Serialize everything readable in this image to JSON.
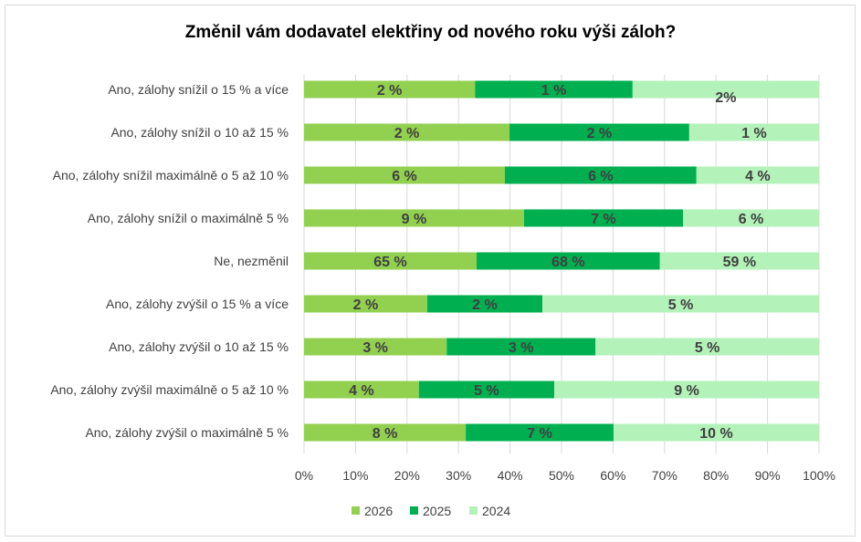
{
  "chart_data": {
    "type": "bar",
    "orientation": "horizontal",
    "stacked": "100%",
    "title": "Změnil vám dodavatel elektřiny od nového roku výši záloh?",
    "categories": [
      "Ano, zálohy snížil o 15 % a více",
      "Ano, zálohy snížil o 10 až 15 %",
      "Ano, zálohy snížil maximálně o 5 až 10 %",
      "Ano, zálohy snížil o maximálně 5 %",
      "Ne, nezměnil",
      "Ano, zálohy zvýšil o 15 % a více",
      "Ano, zálohy zvýšil o 10 až 15 %",
      "Ano, zálohy zvýšil maximálně o 5 až 10 %",
      "Ano, zálohy zvýšil o maximálně 5 %"
    ],
    "series": [
      {
        "name": "2026",
        "color": "#92d050",
        "labels": [
          "2 %",
          "2 %",
          "6 %",
          "9 %",
          "65 %",
          "2 %",
          "3 %",
          "4 %",
          "8 %"
        ],
        "shares": [
          33.2,
          39.9,
          39.0,
          42.7,
          33.5,
          23.9,
          27.7,
          22.3,
          31.4
        ]
      },
      {
        "name": "2025",
        "color": "#00b050",
        "labels": [
          "1 %",
          "2 %",
          "6 %",
          "7 %",
          "68 %",
          "2 %",
          "3 %",
          "5 %",
          "7 %"
        ],
        "shares": [
          30.6,
          34.9,
          37.2,
          30.9,
          35.6,
          22.4,
          28.9,
          26.3,
          28.7
        ]
      },
      {
        "name": "2024",
        "color": "#b3f2b9",
        "labels": [
          "2%",
          "1 %",
          "4 %",
          "6 %",
          "59 %",
          "5 %",
          "5 %",
          "9 %",
          "10 %"
        ],
        "shares": [
          36.2,
          25.2,
          23.8,
          26.4,
          30.9,
          53.7,
          43.4,
          51.4,
          39.9
        ]
      }
    ],
    "xticks": [
      "0%",
      "10%",
      "20%",
      "30%",
      "40%",
      "50%",
      "60%",
      "70%",
      "80%",
      "90%",
      "100%"
    ],
    "xlim": [
      0,
      100
    ],
    "grid": "vertical",
    "legend": "bottom"
  }
}
